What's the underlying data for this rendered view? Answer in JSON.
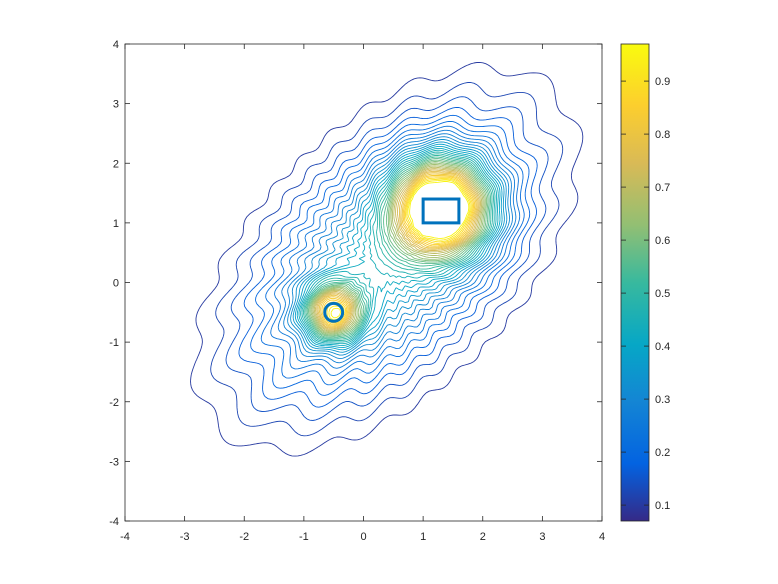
{
  "chart_data": {
    "type": "contour",
    "title": "",
    "xlabel": "",
    "ylabel": "",
    "xlim": [
      -4,
      4
    ],
    "ylim": [
      -4,
      4
    ],
    "x_ticks": [
      "-4",
      "-3",
      "-2",
      "-1",
      "0",
      "1",
      "2",
      "3",
      "4"
    ],
    "y_ticks": [
      "-4",
      "-3",
      "-2",
      "-1",
      "0",
      "1",
      "2",
      "3",
      "4"
    ],
    "grid": false,
    "colormap": "parula",
    "colorbar": {
      "range": [
        0.07,
        0.97
      ],
      "ticks": [
        "0.1",
        "0.2",
        "0.3",
        "0.4",
        "0.5",
        "0.6",
        "0.7",
        "0.8",
        "0.9"
      ],
      "tick_values": [
        0.1,
        0.2,
        0.3,
        0.4,
        0.5,
        0.6,
        0.7,
        0.8,
        0.9
      ],
      "placement": "right"
    },
    "peaks": [
      {
        "x": 1.3,
        "y": 1.25,
        "max": 0.97,
        "shape": "broad"
      },
      {
        "x": -0.5,
        "y": -0.5,
        "max": 0.75,
        "shape": "narrow"
      }
    ],
    "overlays": [
      {
        "shape": "rectangle",
        "x": [
          1.0,
          1.6
        ],
        "y": [
          1.0,
          1.4
        ],
        "color": "#0072BD"
      },
      {
        "shape": "circle",
        "center": [
          -0.5,
          -0.5
        ],
        "radius": 0.15,
        "color": "#0072BD"
      }
    ],
    "colors": {
      "overlay": "#0072BD",
      "axis": "#262626"
    }
  }
}
